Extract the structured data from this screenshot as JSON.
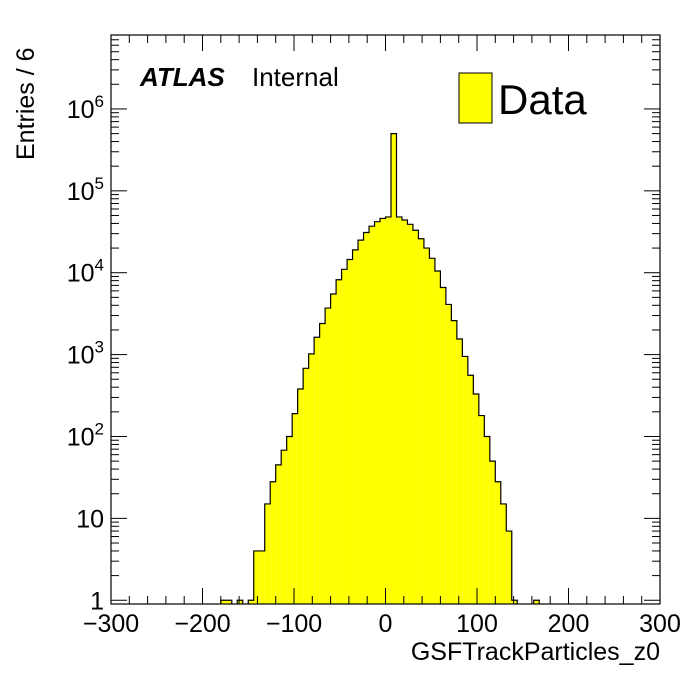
{
  "chart_data": {
    "type": "bar",
    "title": "",
    "xlabel": "GSFTrackParticles_z0",
    "ylabel": "Entries / 6",
    "xlim": [
      -300,
      300
    ],
    "ylim": [
      0.9,
      8000000
    ],
    "y_scale": "log",
    "bin_width": 6,
    "x_ticks": [
      -300,
      -200,
      -100,
      0,
      100,
      200,
      300
    ],
    "x_tick_labels": [
      "−300",
      "−200",
      "−100",
      "0",
      "100",
      "200",
      "300"
    ],
    "y_ticks": [
      {
        "value": 1,
        "base": "1",
        "exp": ""
      },
      {
        "value": 10,
        "base": "10",
        "exp": ""
      },
      {
        "value": 100,
        "base": "10",
        "exp": "2"
      },
      {
        "value": 1000,
        "base": "10",
        "exp": "3"
      },
      {
        "value": 10000,
        "base": "10",
        "exp": "4"
      },
      {
        "value": 100000,
        "base": "10",
        "exp": "5"
      },
      {
        "value": 1000000,
        "base": "10",
        "exp": "6"
      }
    ],
    "atlas_label": "ATLAS",
    "atlas_status": "Internal",
    "legend_position": "top-right",
    "grid": false,
    "series": [
      {
        "name": "Data",
        "color": "#ffff00",
        "edge_color": "#000000",
        "bins": [
          {
            "x": -180,
            "y": 1
          },
          {
            "x": -174,
            "y": 1
          },
          {
            "x": -162,
            "y": 1
          },
          {
            "x": -150,
            "y": 1
          },
          {
            "x": -144,
            "y": 4
          },
          {
            "x": -138,
            "y": 4
          },
          {
            "x": -132,
            "y": 15
          },
          {
            "x": -126,
            "y": 28
          },
          {
            "x": -120,
            "y": 45
          },
          {
            "x": -114,
            "y": 68
          },
          {
            "x": -108,
            "y": 100
          },
          {
            "x": -102,
            "y": 190
          },
          {
            "x": -96,
            "y": 380
          },
          {
            "x": -90,
            "y": 680
          },
          {
            "x": -84,
            "y": 1020
          },
          {
            "x": -78,
            "y": 1630
          },
          {
            "x": -72,
            "y": 2400
          },
          {
            "x": -66,
            "y": 3700
          },
          {
            "x": -60,
            "y": 5500
          },
          {
            "x": -54,
            "y": 8200
          },
          {
            "x": -48,
            "y": 11000
          },
          {
            "x": -42,
            "y": 14500
          },
          {
            "x": -36,
            "y": 19000
          },
          {
            "x": -30,
            "y": 25000
          },
          {
            "x": -24,
            "y": 31000
          },
          {
            "x": -18,
            "y": 37000
          },
          {
            "x": -12,
            "y": 42000
          },
          {
            "x": -6,
            "y": 46000
          },
          {
            "x": 0,
            "y": 48000
          },
          {
            "x": 6,
            "y": 500000
          },
          {
            "x": 12,
            "y": 48000
          },
          {
            "x": 18,
            "y": 44000
          },
          {
            "x": 24,
            "y": 39000
          },
          {
            "x": 30,
            "y": 33000
          },
          {
            "x": 36,
            "y": 26000
          },
          {
            "x": 42,
            "y": 20000
          },
          {
            "x": 48,
            "y": 15000
          },
          {
            "x": 54,
            "y": 10500
          },
          {
            "x": 60,
            "y": 6600
          },
          {
            "x": 66,
            "y": 4100
          },
          {
            "x": 72,
            "y": 2600
          },
          {
            "x": 78,
            "y": 1550
          },
          {
            "x": 84,
            "y": 950
          },
          {
            "x": 90,
            "y": 560
          },
          {
            "x": 96,
            "y": 330
          },
          {
            "x": 102,
            "y": 180
          },
          {
            "x": 108,
            "y": 100
          },
          {
            "x": 114,
            "y": 50
          },
          {
            "x": 120,
            "y": 28
          },
          {
            "x": 126,
            "y": 15
          },
          {
            "x": 132,
            "y": 7
          },
          {
            "x": 138,
            "y": 1
          },
          {
            "x": 162,
            "y": 1
          }
        ]
      }
    ]
  }
}
